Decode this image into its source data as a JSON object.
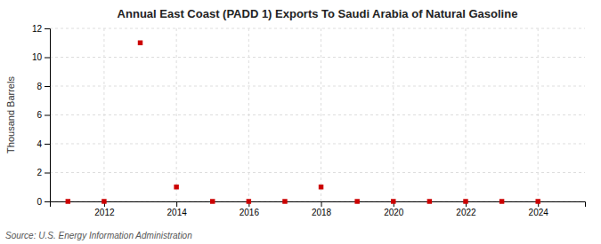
{
  "chart_data": {
    "type": "scatter",
    "title": "Annual East Coast (PADD 1) Exports To Saudi Arabia of Natural Gasoline",
    "ylabel": "Thousand Barrels",
    "source": "Source: U.S. Energy Information Administration",
    "x": [
      2011,
      2012,
      2013,
      2014,
      2015,
      2016,
      2017,
      2018,
      2019,
      2020,
      2021,
      2022,
      2023,
      2024
    ],
    "values": [
      0,
      0,
      11,
      1,
      0,
      0,
      0,
      1,
      0,
      0,
      0,
      0,
      0,
      0
    ],
    "color": "#cc0000",
    "marker": "square",
    "xlim": [
      2010.5,
      2025.3
    ],
    "ylim": [
      0,
      12
    ],
    "xticks": [
      2012,
      2014,
      2016,
      2018,
      2020,
      2022,
      2024
    ],
    "yticks": [
      0,
      2,
      4,
      6,
      8,
      10,
      12
    ],
    "grid": true
  }
}
